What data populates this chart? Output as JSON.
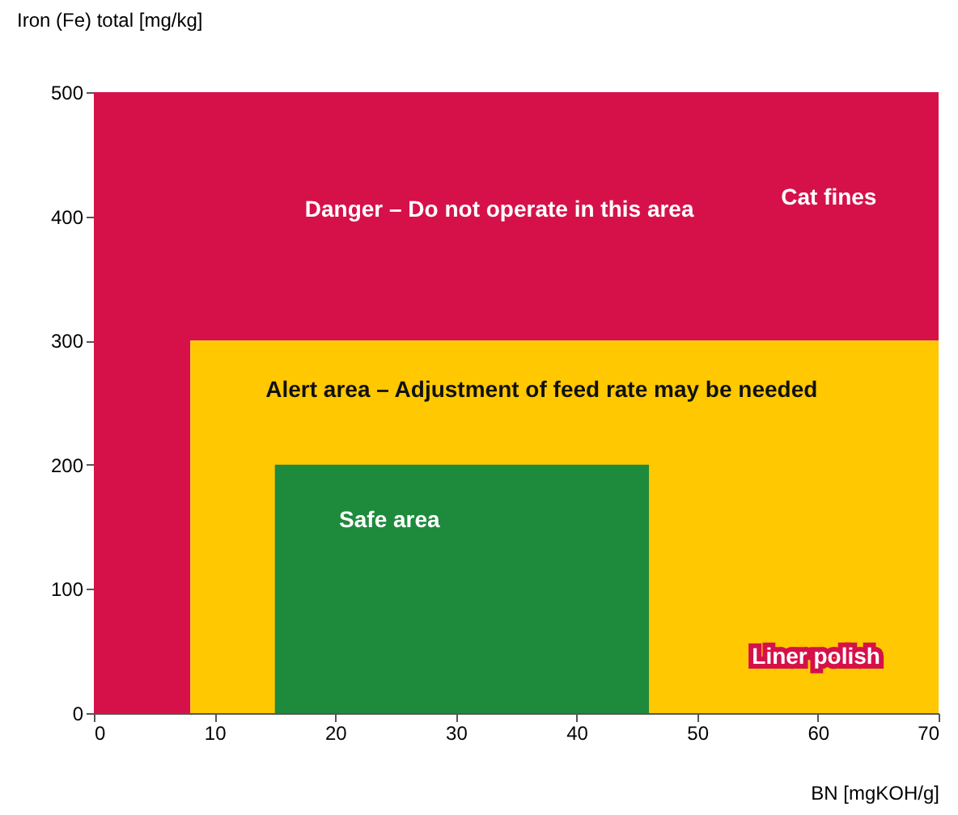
{
  "chart_data": {
    "type": "area",
    "xlabel": "BN [mgKOH/g]",
    "ylabel": "Iron (Fe) total [mg/kg]",
    "xlim": [
      0,
      70
    ],
    "xticks": [
      0,
      10,
      20,
      30,
      40,
      50,
      60,
      70
    ],
    "ylim": [
      0,
      500
    ],
    "yticks": [
      0,
      100,
      200,
      300,
      400,
      500
    ],
    "grid": false,
    "bands": [
      {
        "axis": "y",
        "from": 300,
        "to": 500,
        "color": "#d6114a"
      },
      {
        "axis": "x",
        "from": 0,
        "to": 8,
        "color": "#d6114a"
      }
    ],
    "series": [
      {
        "color": "#ffc800",
        "x": [
          8,
          70
        ],
        "values": [
          300,
          300
        ]
      },
      {
        "color": "#1e8a3c",
        "x": [
          15,
          46
        ],
        "values": [
          200,
          200
        ]
      }
    ],
    "annotations": [
      "Danger – Do not operate in this area",
      "Alert area – Adjustment of feed rate may be needed",
      "Safe area",
      "Cat fines",
      "Liner polish"
    ]
  }
}
